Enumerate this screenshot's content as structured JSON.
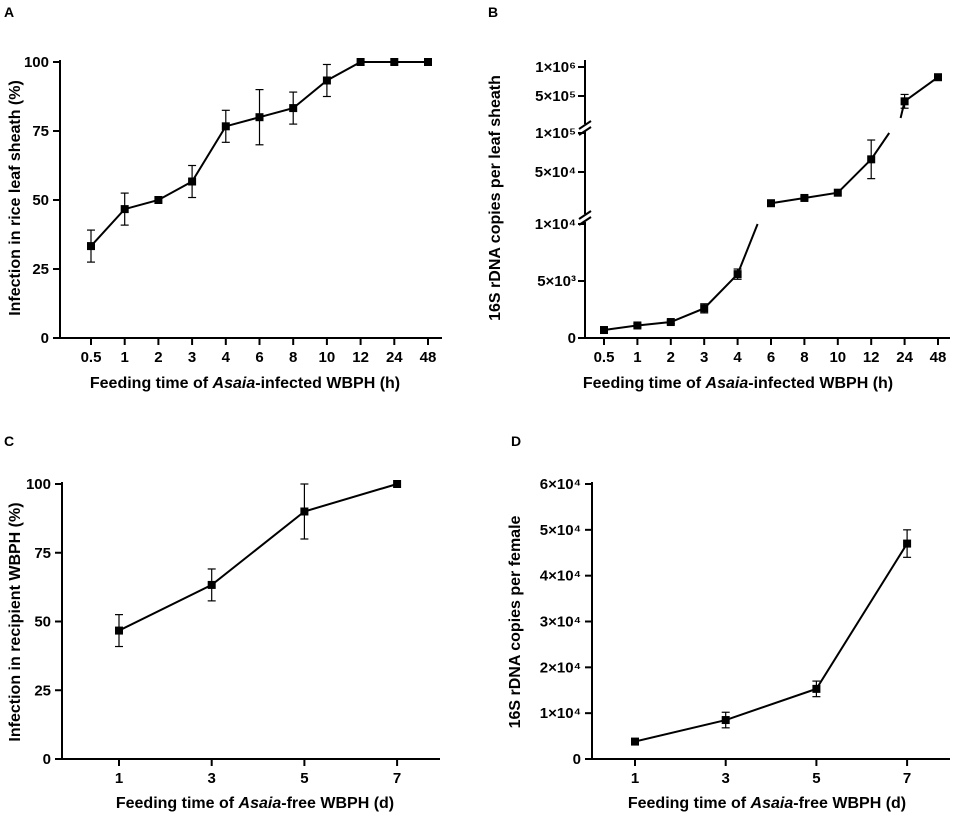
{
  "charts": [
    {
      "panel": "A",
      "type": "line",
      "ylabel": "Infection in rice leaf sheath (%)",
      "xlabel_parts": [
        "Feeding time of ",
        "Asaia",
        "-infected WBPH (h)"
      ],
      "categories": [
        "0.5",
        "1",
        "2",
        "3",
        "4",
        "6",
        "8",
        "10",
        "12",
        "24",
        "48"
      ],
      "yticks": [
        "0",
        "25",
        "50",
        "75",
        "100"
      ],
      "ylim": [
        0,
        100
      ],
      "values": [
        33.3,
        46.7,
        50,
        56.7,
        76.7,
        80,
        83.3,
        93.3,
        100,
        100,
        100
      ],
      "errors": [
        5.8,
        5.8,
        0,
        5.8,
        5.8,
        10,
        5.8,
        5.8,
        0,
        0,
        0
      ]
    },
    {
      "panel": "B",
      "type": "line",
      "ylabel": "16S rDNA copies per leaf sheath",
      "xlabel_parts": [
        "Feeding time of ",
        "Asaia",
        "-infected WBPH (h)"
      ],
      "categories": [
        "0.5",
        "1",
        "2",
        "3",
        "4",
        "6",
        "8",
        "10",
        "12",
        "24",
        "48"
      ],
      "yticks": [
        "0",
        "5×10³",
        "1×10⁴",
        "5×10⁴",
        "1×10⁵",
        "5×10⁵",
        "1×10⁶"
      ],
      "axis_segments": [
        [
          0,
          10000
        ],
        [
          10000,
          100000
        ],
        [
          100000,
          1000000
        ]
      ],
      "values": [
        700,
        1100,
        1400,
        2600,
        5600,
        20000,
        26000,
        32000,
        70000,
        400000,
        750000
      ],
      "errors": [
        150,
        150,
        150,
        400,
        450,
        0,
        2000,
        0,
        22000,
        100000,
        0
      ]
    },
    {
      "panel": "C",
      "type": "line",
      "ylabel": "Infection in recipient WBPH (%)",
      "xlabel_parts": [
        "Feeding time of ",
        "Asaia",
        "-free WBPH (d)"
      ],
      "categories": [
        "1",
        "3",
        "5",
        "7"
      ],
      "yticks": [
        "0",
        "25",
        "50",
        "75",
        "100"
      ],
      "ylim": [
        0,
        100
      ],
      "values": [
        46.7,
        63.3,
        90,
        100
      ],
      "errors": [
        5.8,
        5.8,
        10,
        0
      ]
    },
    {
      "panel": "D",
      "type": "line",
      "ylabel": "16S rDNA copies per female",
      "xlabel_parts": [
        "Feeding time of ",
        "Asaia",
        "-free WBPH (d)"
      ],
      "categories": [
        "1",
        "3",
        "5",
        "7"
      ],
      "yticks": [
        "0",
        "1×10⁴",
        "2×10⁴",
        "3×10⁴",
        "4×10⁴",
        "5×10⁴",
        "6×10⁴"
      ],
      "ylim": [
        0,
        60000
      ],
      "values": [
        3800,
        8500,
        15300,
        47000
      ],
      "errors": [
        0,
        1700,
        1700,
        3000
      ]
    }
  ]
}
